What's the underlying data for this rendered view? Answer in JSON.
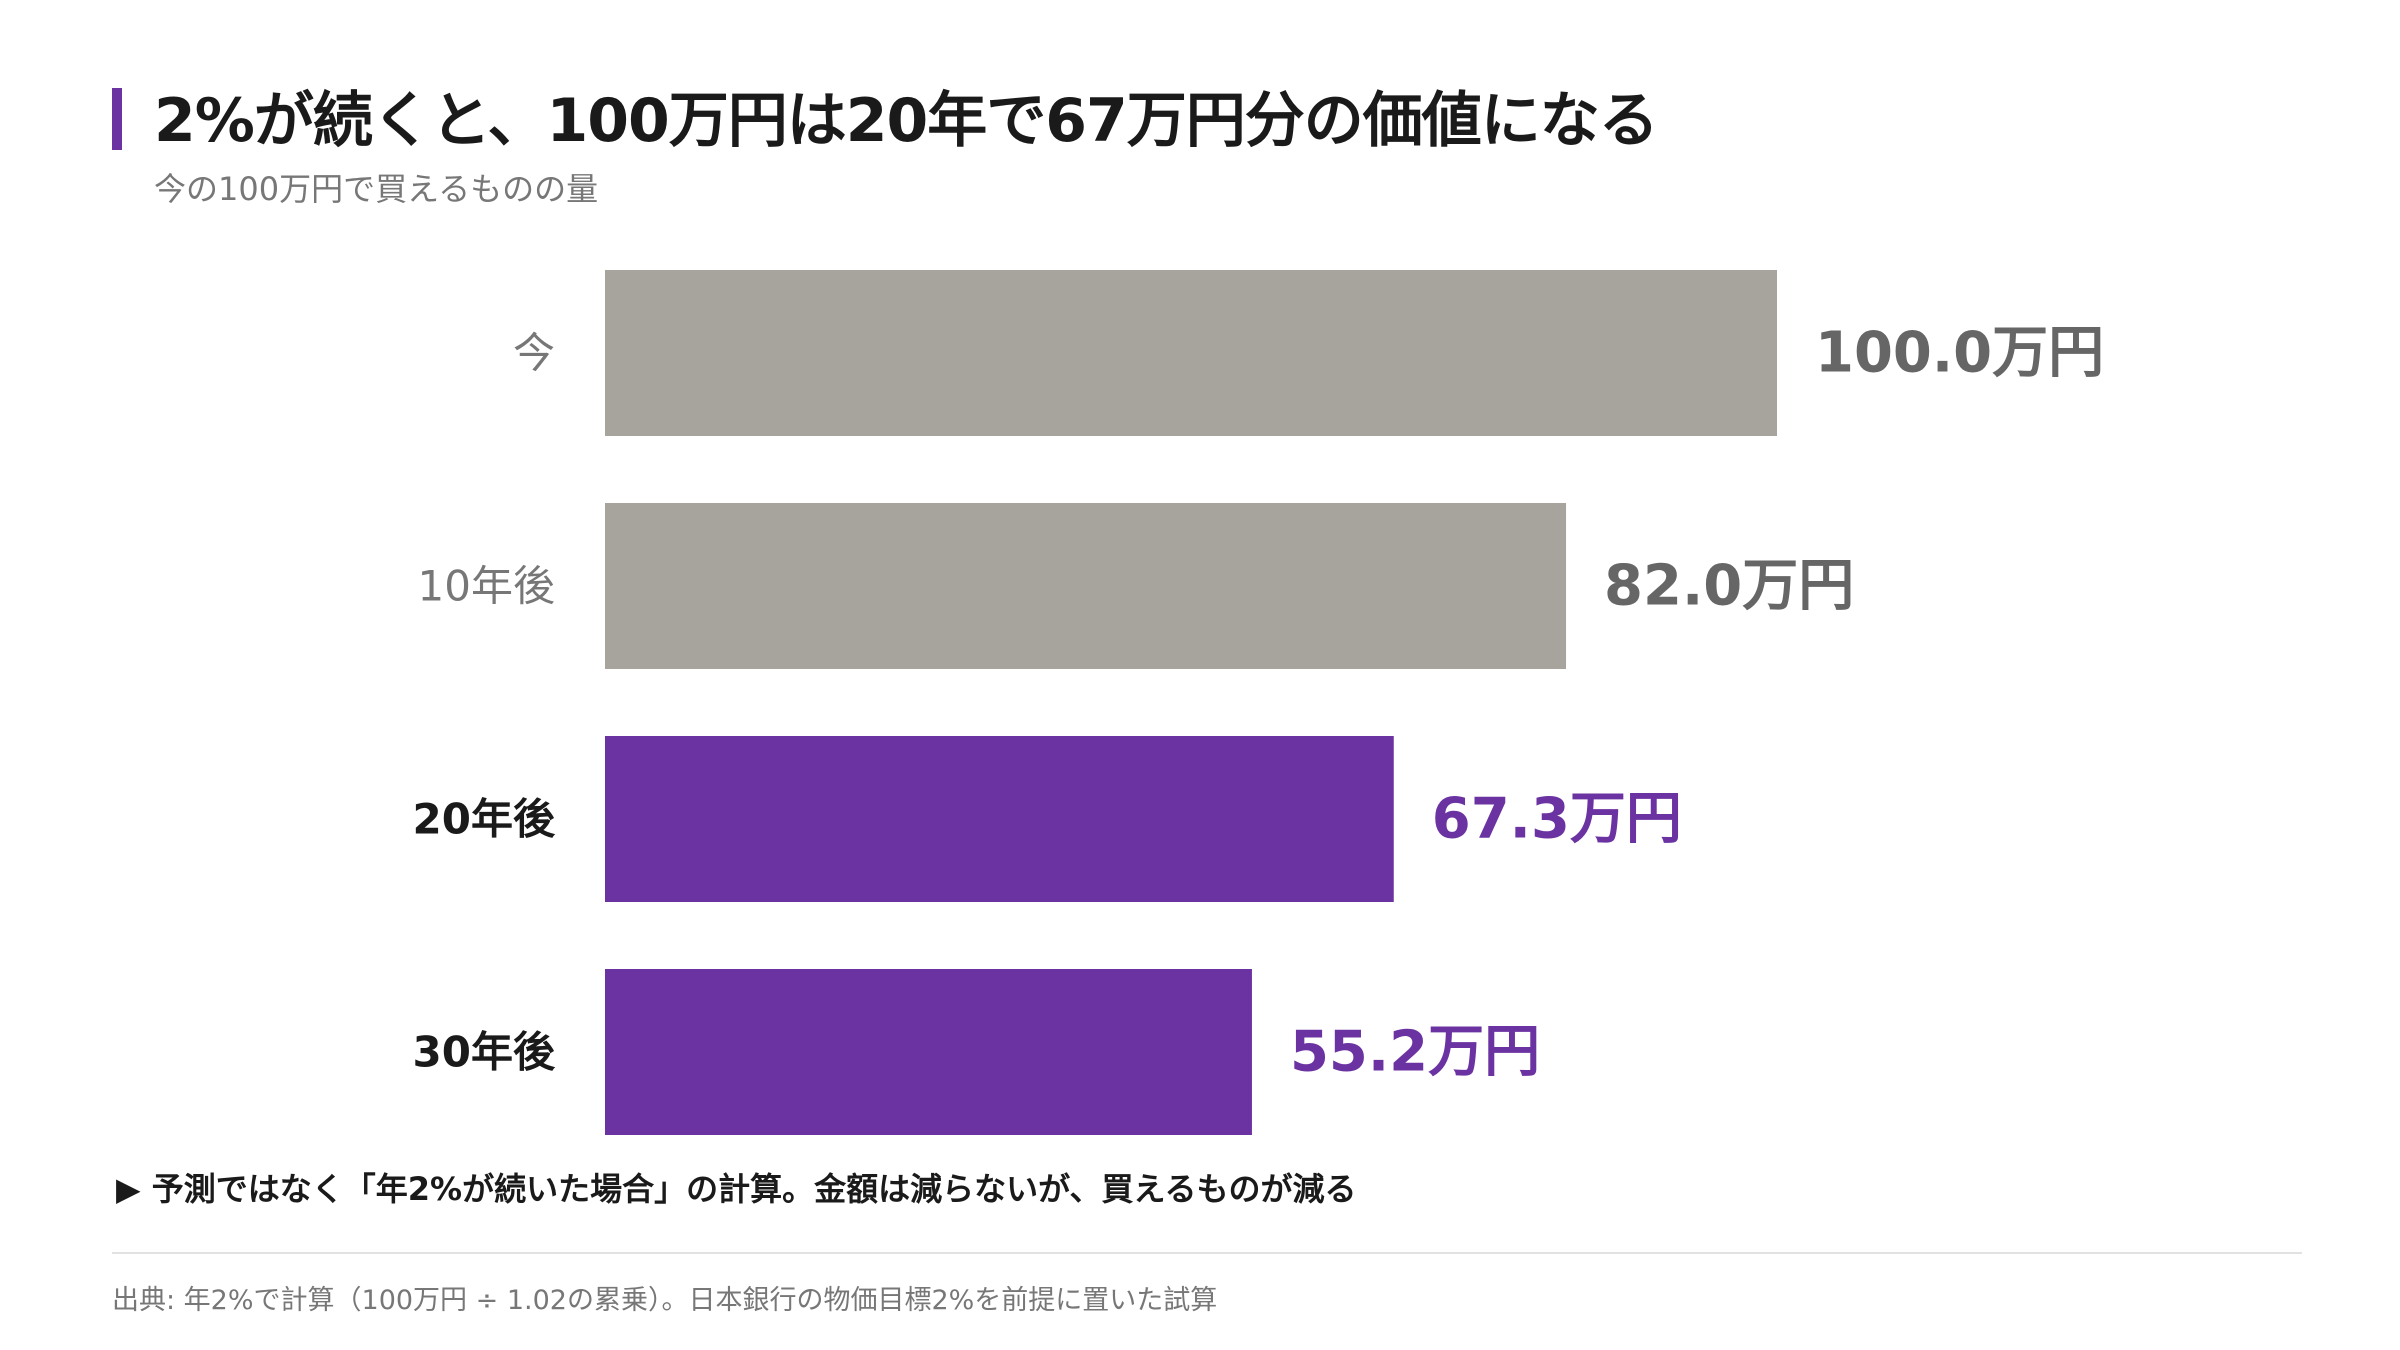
{
  "header": {
    "title": "2%が続くと、100万円は20年で67万円分の価値になる",
    "subtitle": "今の100万円で買えるものの量"
  },
  "chart_data": {
    "type": "bar",
    "orientation": "horizontal",
    "categories": [
      "今",
      "10年後",
      "20年後",
      "30年後"
    ],
    "values": [
      100.0,
      82.0,
      67.3,
      55.2
    ],
    "value_labels": [
      "100.0万円",
      "82.0万円",
      "67.3万円",
      "55.2万円"
    ],
    "highlight": [
      false,
      false,
      true,
      true
    ],
    "xlim": [
      0,
      100
    ],
    "grid": false,
    "colors": {
      "bar_default": "#a6a49c",
      "bar_highlight": "#6b32a2",
      "label_default": "#666666",
      "label_highlight": "#6b32a2",
      "category_default": "#777777",
      "category_highlight": "#1a1a1a"
    }
  },
  "note": {
    "text": "▶ 予測ではなく「年2%が続いた場合」の計算。金額は減らないが、買えるものが減る"
  },
  "footer": {
    "source": "出典: 年2%で計算（100万円 ÷ 1.02の累乗）。日本銀行の物価目標2%を前提に置いた試算"
  },
  "colors": {
    "accent": "#6b32a2"
  }
}
